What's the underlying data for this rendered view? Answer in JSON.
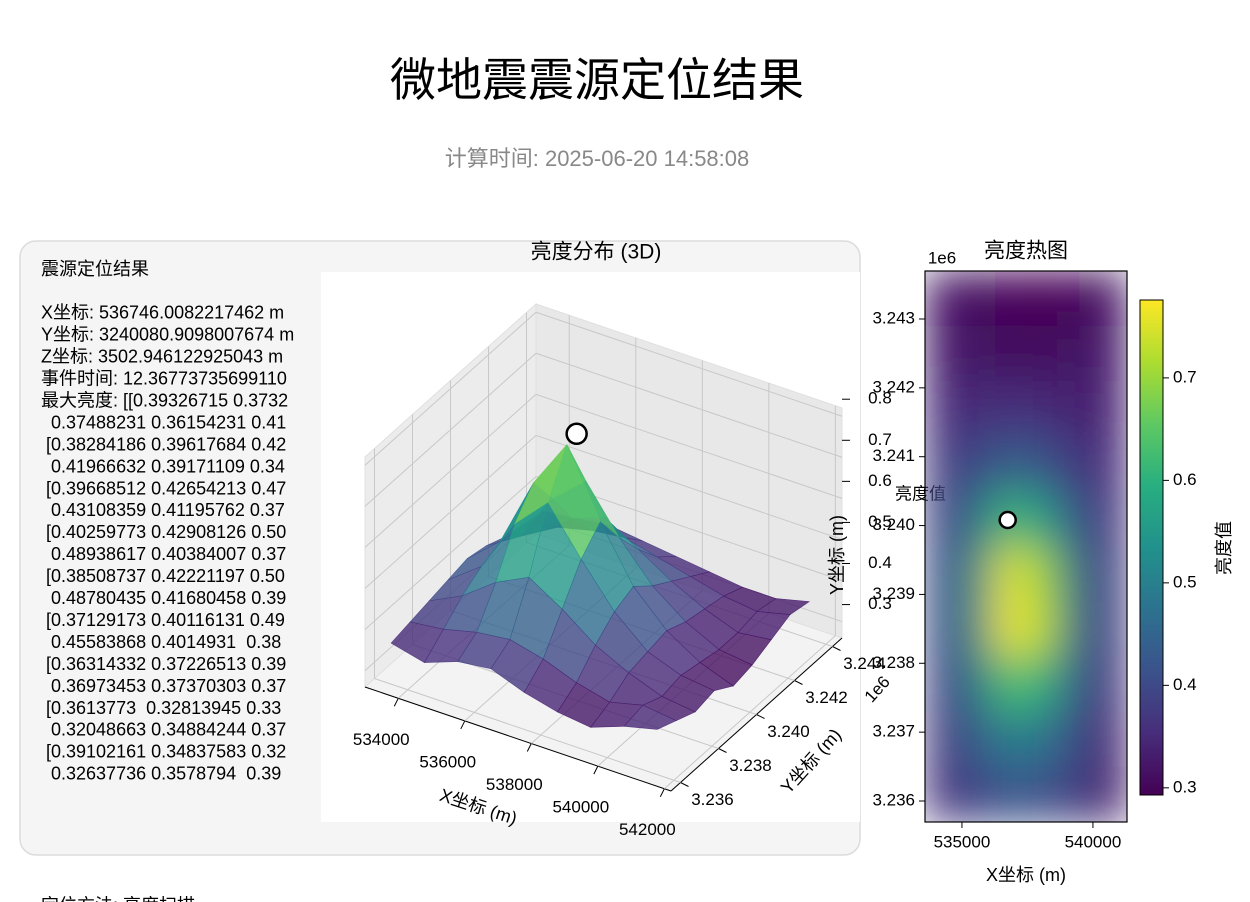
{
  "header": {
    "title": "微地震震源定位结果",
    "subtitle": "计算时间: 2025-06-20 14:58:08"
  },
  "results_panel": {
    "heading": "震源定位结果",
    "fields": [
      "X坐标: 536746.0082217462 m",
      "Y坐标: 3240080.9098007674 m",
      "Z坐标: 3502.946122925043 m",
      "事件时间: 12.36773735699110"
    ],
    "max_brightness": [
      "最大亮度: [[0.39326715 0.3732",
      "  0.37488231 0.36154231 0.41",
      " [0.38284186 0.39617684 0.42",
      "  0.41966632 0.39171109 0.34",
      " [0.39668512 0.42654213 0.47",
      "  0.43108359 0.41195762 0.37",
      " [0.40259773 0.42908126 0.50",
      "  0.48938617 0.40384007 0.37",
      " [0.38508737 0.42221197 0.50",
      "  0.48780435 0.41680458 0.39",
      " [0.37129173 0.40116131 0.49",
      "  0.45583868 0.4014931  0.38",
      " [0.36314332 0.37226513 0.39",
      "  0.36973453 0.37370303 0.37",
      " [0.3613773  0.32813945 0.33",
      "  0.32048663 0.34884244 0.37",
      " [0.39102161 0.34837583 0.32",
      "  0.32637736 0.3578794  0.39"
    ],
    "method": "定位方法: 亮度扫描"
  },
  "chart_data": [
    {
      "type": "surface",
      "title": "亮度分布 (3D)",
      "x_label": "X坐标 (m)",
      "y_label": "Y坐标 (m)",
      "z_label": "亮度值",
      "y_offset_label": "1e6",
      "colormap": "viridis",
      "alpha": 0.8,
      "x": [
        533500,
        534500,
        535500,
        536500,
        537500,
        538500,
        539500,
        540500,
        541500
      ],
      "y": [
        3236000,
        3237000,
        3238000,
        3239000,
        3240000,
        3241000,
        3242000,
        3243000,
        3244000
      ],
      "z": [
        [
          0.36,
          0.34,
          0.37,
          0.38,
          0.35,
          0.33,
          0.32,
          0.35,
          0.37
        ],
        [
          0.37,
          0.38,
          0.4,
          0.41,
          0.39,
          0.36,
          0.34,
          0.36,
          0.35
        ],
        [
          0.38,
          0.42,
          0.48,
          0.52,
          0.47,
          0.41,
          0.37,
          0.34,
          0.33
        ],
        [
          0.39,
          0.45,
          0.58,
          0.66,
          0.55,
          0.45,
          0.38,
          0.35,
          0.34
        ],
        [
          0.4,
          0.47,
          0.64,
          0.76,
          0.6,
          0.47,
          0.39,
          0.34,
          0.31
        ],
        [
          0.39,
          0.44,
          0.56,
          0.63,
          0.52,
          0.43,
          0.37,
          0.33,
          0.32
        ],
        [
          0.37,
          0.41,
          0.47,
          0.5,
          0.45,
          0.4,
          0.36,
          0.33,
          0.34
        ],
        [
          0.36,
          0.38,
          0.4,
          0.41,
          0.39,
          0.37,
          0.35,
          0.34,
          0.36
        ],
        [
          0.35,
          0.36,
          0.37,
          0.36,
          0.35,
          0.34,
          0.33,
          0.33,
          0.35
        ]
      ],
      "xlim": [
        533000,
        542200
      ],
      "ylim": [
        3235500,
        3244500
      ],
      "zlim": [
        0.26,
        0.82
      ],
      "xticks": [
        534000,
        536000,
        538000,
        540000,
        542000
      ],
      "yticks": [
        {
          "value": 3236000,
          "label": "3.236"
        },
        {
          "value": 3238000,
          "label": "3.238"
        },
        {
          "value": 3240000,
          "label": "3.240"
        },
        {
          "value": 3242000,
          "label": "3.242"
        },
        {
          "value": 3244000,
          "label": "3.244"
        }
      ],
      "zticks": [
        0.3,
        0.4,
        0.5,
        0.6,
        0.7,
        0.8
      ],
      "marker": {
        "x": 536746,
        "y": 3240081,
        "z": 0.79
      }
    },
    {
      "type": "heatmap",
      "title": "亮度热图",
      "x_label": "X坐标 (m)",
      "y_label": "Y坐标 (m)",
      "y_offset_label": "1e6",
      "colorbar_label": "亮度值",
      "colormap": "viridis",
      "values": [
        [
          0.32,
          0.31,
          0.3,
          0.29,
          0.3,
          0.32
        ],
        [
          0.33,
          0.32,
          0.31,
          0.31,
          0.32,
          0.33
        ],
        [
          0.35,
          0.35,
          0.36,
          0.35,
          0.34,
          0.34
        ],
        [
          0.37,
          0.4,
          0.44,
          0.42,
          0.37,
          0.35
        ],
        [
          0.38,
          0.47,
          0.62,
          0.56,
          0.42,
          0.36
        ],
        [
          0.39,
          0.52,
          0.76,
          0.7,
          0.46,
          0.37
        ],
        [
          0.39,
          0.52,
          0.77,
          0.72,
          0.46,
          0.37
        ],
        [
          0.38,
          0.48,
          0.64,
          0.6,
          0.43,
          0.36
        ],
        [
          0.37,
          0.43,
          0.5,
          0.48,
          0.4,
          0.34
        ],
        [
          0.36,
          0.39,
          0.42,
          0.41,
          0.38,
          0.33
        ]
      ],
      "xlim": [
        533590,
        541300
      ],
      "ylim": [
        3235695,
        3243697
      ],
      "xticks": [
        535000,
        540000
      ],
      "yticks": [
        {
          "value": 3236000,
          "label": "3.236"
        },
        {
          "value": 3237000,
          "label": "3.237"
        },
        {
          "value": 3238000,
          "label": "3.238"
        },
        {
          "value": 3239000,
          "label": "3.239"
        },
        {
          "value": 3240000,
          "label": "3.240"
        },
        {
          "value": 3241000,
          "label": "3.241"
        },
        {
          "value": 3242000,
          "label": "3.242"
        },
        {
          "value": 3243000,
          "label": "3.243"
        }
      ],
      "clim": [
        0.293,
        0.776
      ],
      "cticks": [
        0.3,
        0.4,
        0.5,
        0.6,
        0.7
      ],
      "marker": {
        "x": 536746,
        "y": 3240081
      }
    }
  ]
}
